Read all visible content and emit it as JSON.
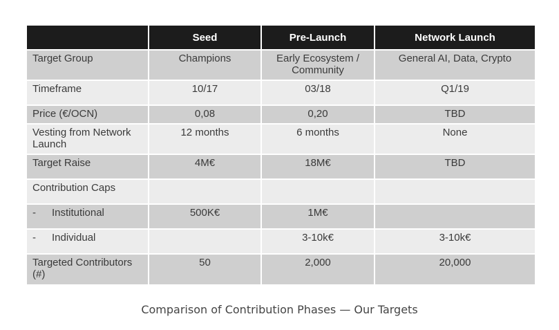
{
  "table": {
    "headers": [
      "",
      "Seed",
      "Pre-Launch",
      "Network Launch"
    ],
    "rows": [
      {
        "label": "Target Group",
        "seed": "Champions",
        "prelaunch": "Early Ecosystem / Community",
        "network": "General AI, Data, Crypto"
      },
      {
        "label": "Timeframe",
        "seed": "10/17",
        "prelaunch": "03/18",
        "network": "Q1/19"
      },
      {
        "label": "Price (€/OCN)",
        "seed": "0,08",
        "prelaunch": "0,20",
        "network": "TBD"
      },
      {
        "label": "Vesting from Network Launch",
        "seed": "12 months",
        "prelaunch": "6 months",
        "network": "None"
      },
      {
        "label": "Target Raise",
        "seed": "4M€",
        "prelaunch": "18M€",
        "network": "TBD"
      },
      {
        "label": "Contribution Caps",
        "seed": "",
        "prelaunch": "",
        "network": ""
      },
      {
        "label": "Institutional",
        "dash": "-",
        "seed": "500K€",
        "prelaunch": "1M€",
        "network": ""
      },
      {
        "label": "Individual",
        "dash": "-",
        "seed": "",
        "prelaunch": "3-10k€",
        "network": "3-10k€"
      },
      {
        "label": "Targeted Contributors (#)",
        "seed": "50",
        "prelaunch": "2,000",
        "network": "20,000"
      }
    ]
  },
  "caption": "Comparison of Contribution Phases — Our Targets"
}
